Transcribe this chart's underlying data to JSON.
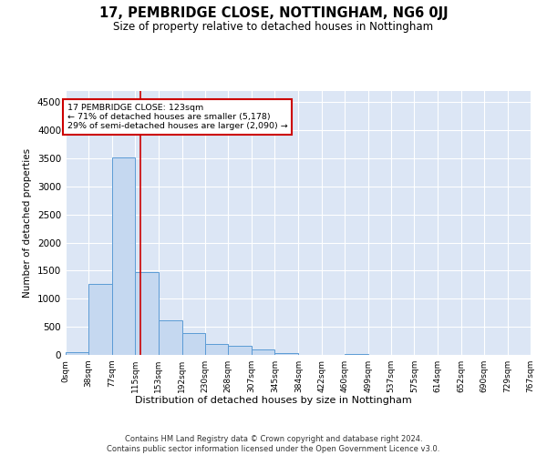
{
  "title": "17, PEMBRIDGE CLOSE, NOTTINGHAM, NG6 0JJ",
  "subtitle": "Size of property relative to detached houses in Nottingham",
  "xlabel": "Distribution of detached houses by size in Nottingham",
  "ylabel": "Number of detached properties",
  "footer_line1": "Contains HM Land Registry data © Crown copyright and database right 2024.",
  "footer_line2": "Contains public sector information licensed under the Open Government Licence v3.0.",
  "bar_color": "#c5d8f0",
  "bar_edge_color": "#5b9bd5",
  "background_color": "#dce6f5",
  "grid_color": "#ffffff",
  "annotation_box_color": "#cc0000",
  "property_line_color": "#cc0000",
  "property_sqm": 123,
  "annotation_text_line1": "17 PEMBRIDGE CLOSE: 123sqm",
  "annotation_text_line2": "← 71% of detached houses are smaller (5,178)",
  "annotation_text_line3": "29% of semi-detached houses are larger (2,090) →",
  "bin_labels": [
    "0sqm",
    "38sqm",
    "77sqm",
    "115sqm",
    "153sqm",
    "192sqm",
    "230sqm",
    "268sqm",
    "307sqm",
    "345sqm",
    "384sqm",
    "422sqm",
    "460sqm",
    "499sqm",
    "537sqm",
    "575sqm",
    "614sqm",
    "652sqm",
    "690sqm",
    "729sqm",
    "767sqm"
  ],
  "bin_edges": [
    0,
    38,
    77,
    115,
    153,
    192,
    230,
    268,
    307,
    345,
    384,
    422,
    460,
    499,
    537,
    575,
    614,
    652,
    690,
    729,
    767
  ],
  "bar_heights": [
    50,
    1260,
    3520,
    1470,
    620,
    390,
    200,
    160,
    100,
    30,
    0,
    0,
    20,
    0,
    0,
    0,
    0,
    0,
    0,
    0
  ],
  "ylim": [
    0,
    4700
  ],
  "yticks": [
    0,
    500,
    1000,
    1500,
    2000,
    2500,
    3000,
    3500,
    4000,
    4500
  ]
}
